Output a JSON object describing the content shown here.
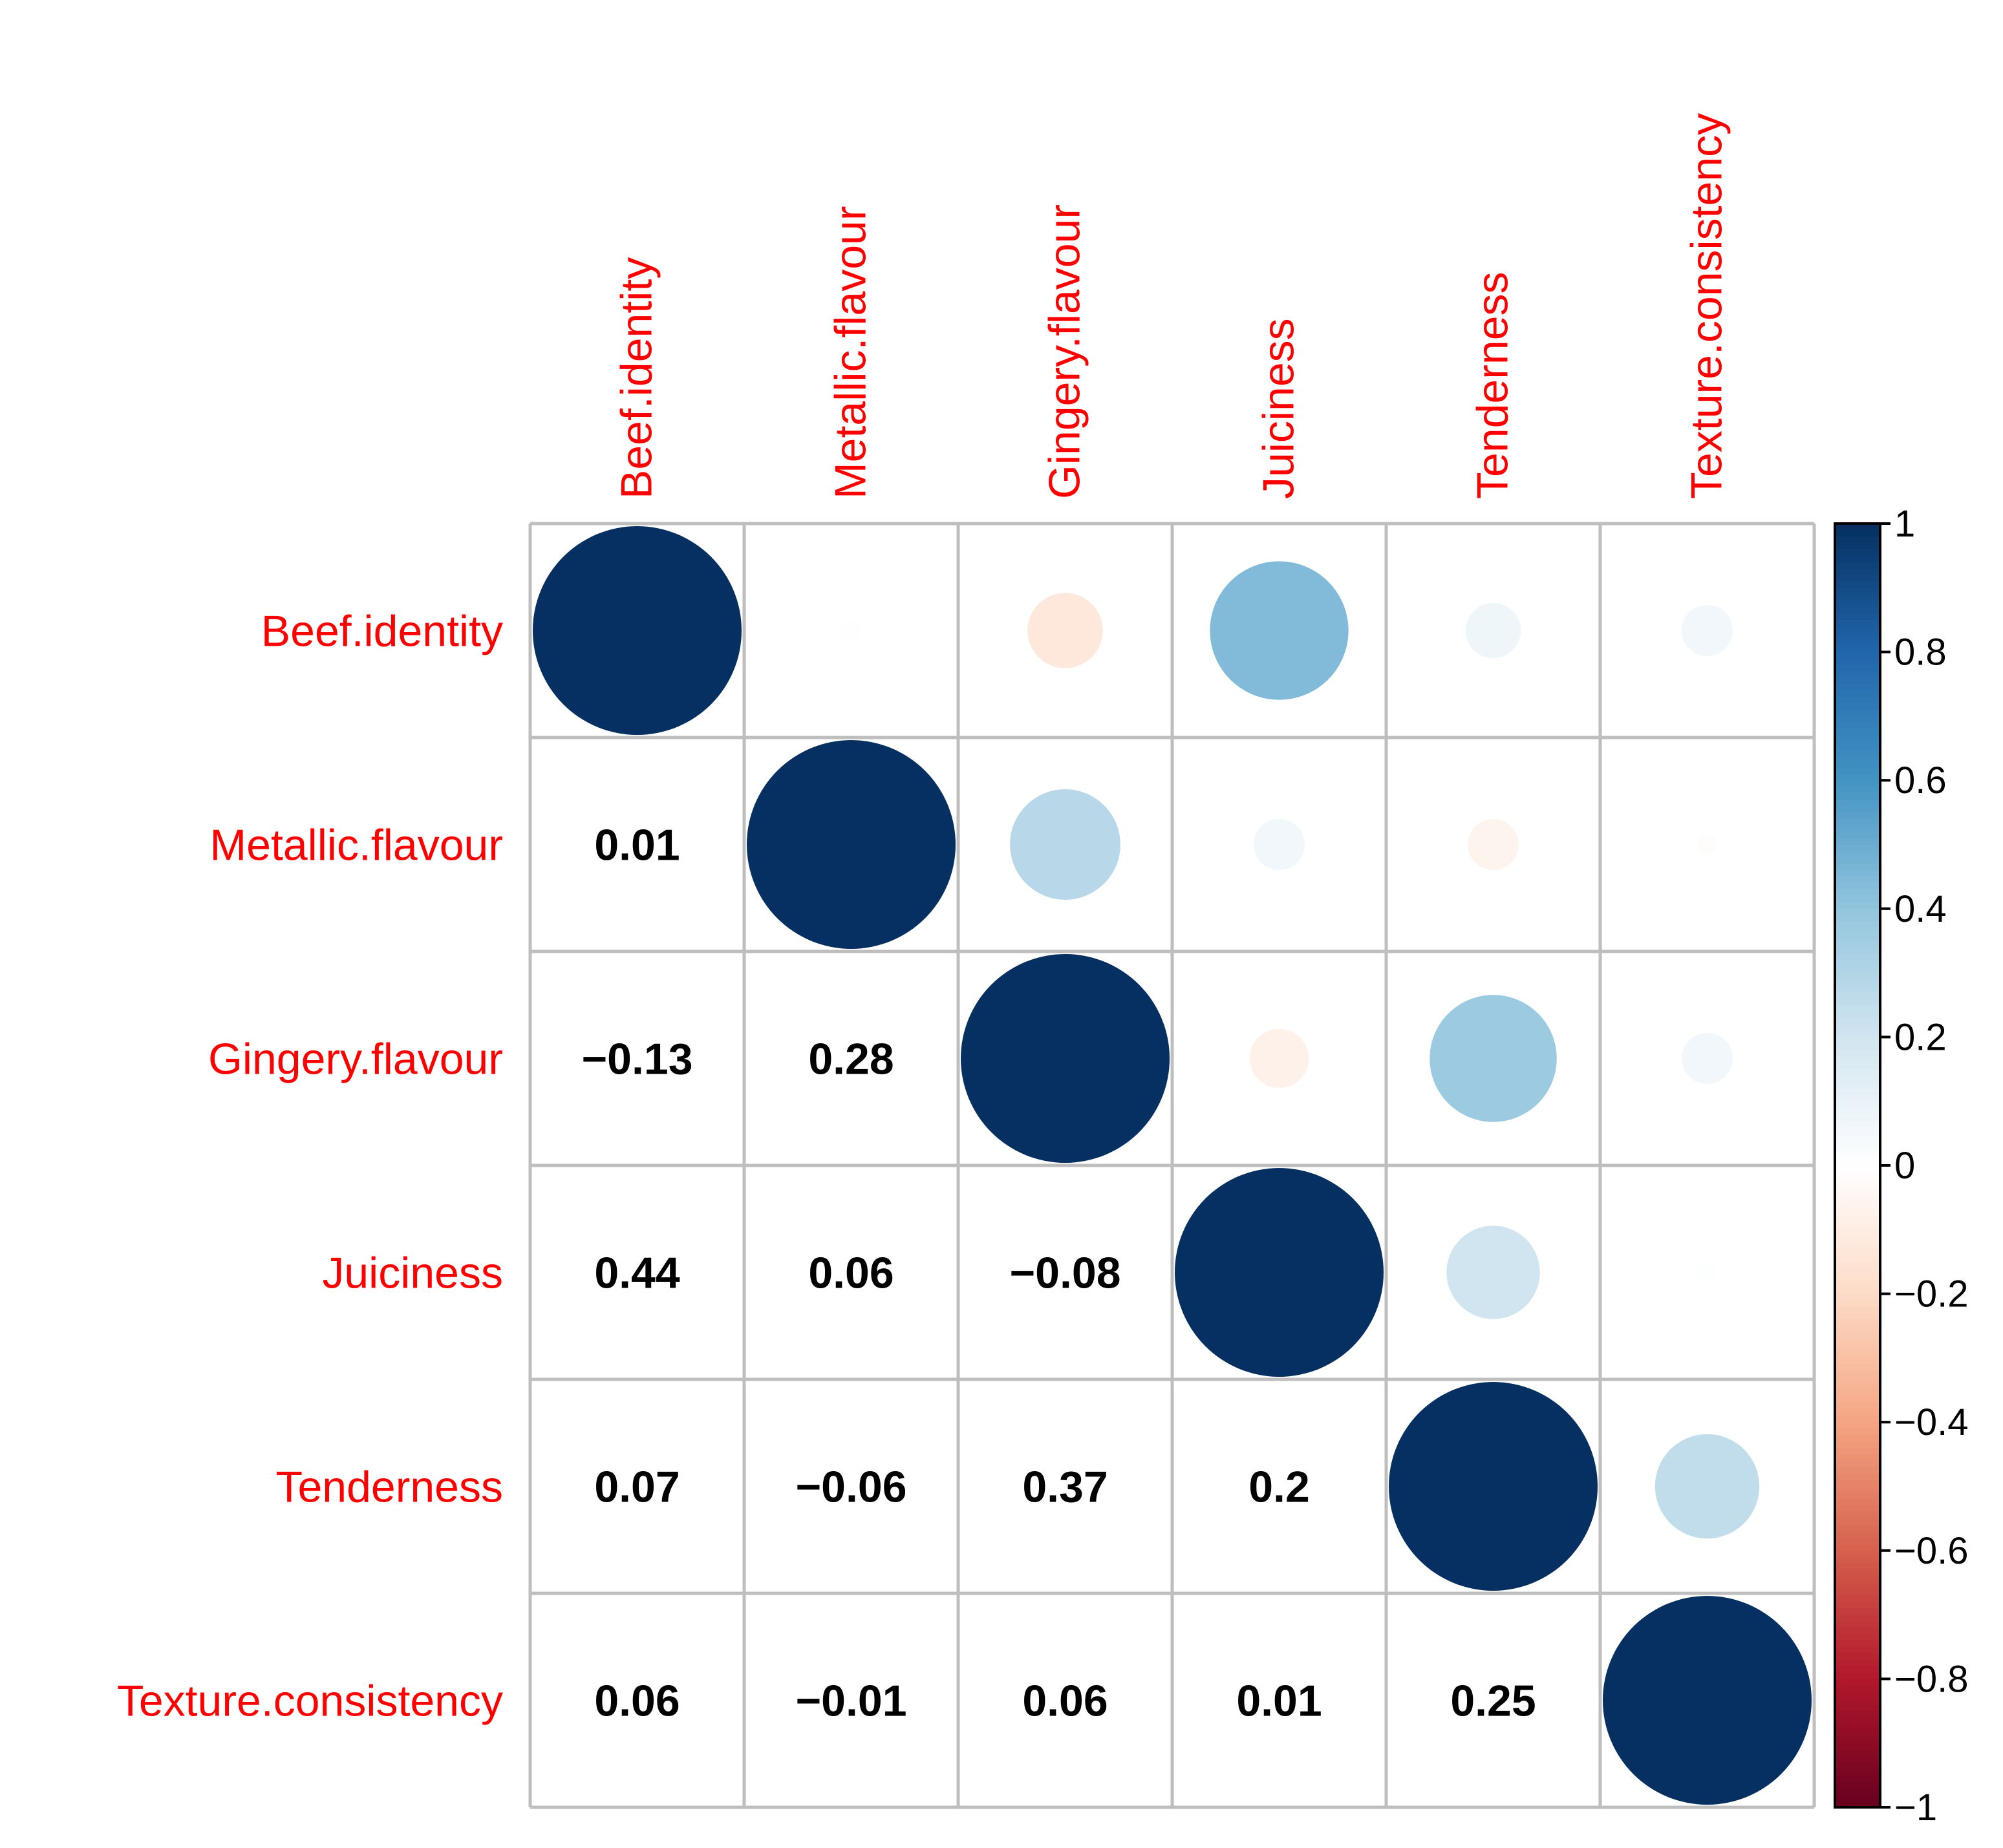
{
  "chart_data": {
    "type": "heatmap",
    "variables": [
      "Beef.identity",
      "Metallic.flavour",
      "Gingery.flavour",
      "Juiciness",
      "Tenderness",
      "Texture.consistency"
    ],
    "matrix": [
      [
        1,
        0.01,
        -0.13,
        0.44,
        0.07,
        0.06
      ],
      [
        0.01,
        1,
        0.28,
        0.06,
        -0.06,
        -0.01
      ],
      [
        -0.13,
        0.28,
        1,
        -0.08,
        0.37,
        0.06
      ],
      [
        0.44,
        0.06,
        -0.08,
        1,
        0.2,
        0.01
      ],
      [
        0.07,
        -0.06,
        0.37,
        0.2,
        1,
        0.25
      ],
      [
        0.06,
        -0.01,
        0.06,
        0.01,
        0.25,
        1
      ]
    ],
    "coefficient_labels": [
      [
        "",
        "",
        "",
        "",
        "",
        ""
      ],
      [
        "0.01",
        "",
        "",
        "",
        "",
        ""
      ],
      [
        "−0.13",
        "0.28",
        "",
        "",
        "",
        ""
      ],
      [
        "0.44",
        "0.06",
        "−0.08",
        "",
        "",
        ""
      ],
      [
        "0.07",
        "−0.06",
        "0.37",
        "0.2",
        "",
        ""
      ],
      [
        "0.06",
        "−0.01",
        "0.06",
        "0.01",
        "0.25",
        ""
      ]
    ],
    "upper_triangle": "circles",
    "lower_triangle": "numbers",
    "label_color": "#ff0000",
    "colorbar": {
      "range": [
        -1,
        1
      ],
      "ticks": [
        "1",
        "0.8",
        "0.6",
        "0.4",
        "0.2",
        "0",
        "−0.2",
        "−0.4",
        "−0.6",
        "−0.8",
        "−1"
      ],
      "tick_values": [
        1,
        0.8,
        0.6,
        0.4,
        0.2,
        0,
        -0.2,
        -0.4,
        -0.6,
        -0.8,
        -1
      ],
      "position": "right"
    },
    "colors": {
      "grid": "#bebebe",
      "colorbar_stops": [
        "#67001f",
        "#b2182b",
        "#d6604d",
        "#f4a582",
        "#fddbc7",
        "#ffffff",
        "#d1e5f0",
        "#92c5de",
        "#4393c3",
        "#2166ac",
        "#053061"
      ]
    }
  }
}
